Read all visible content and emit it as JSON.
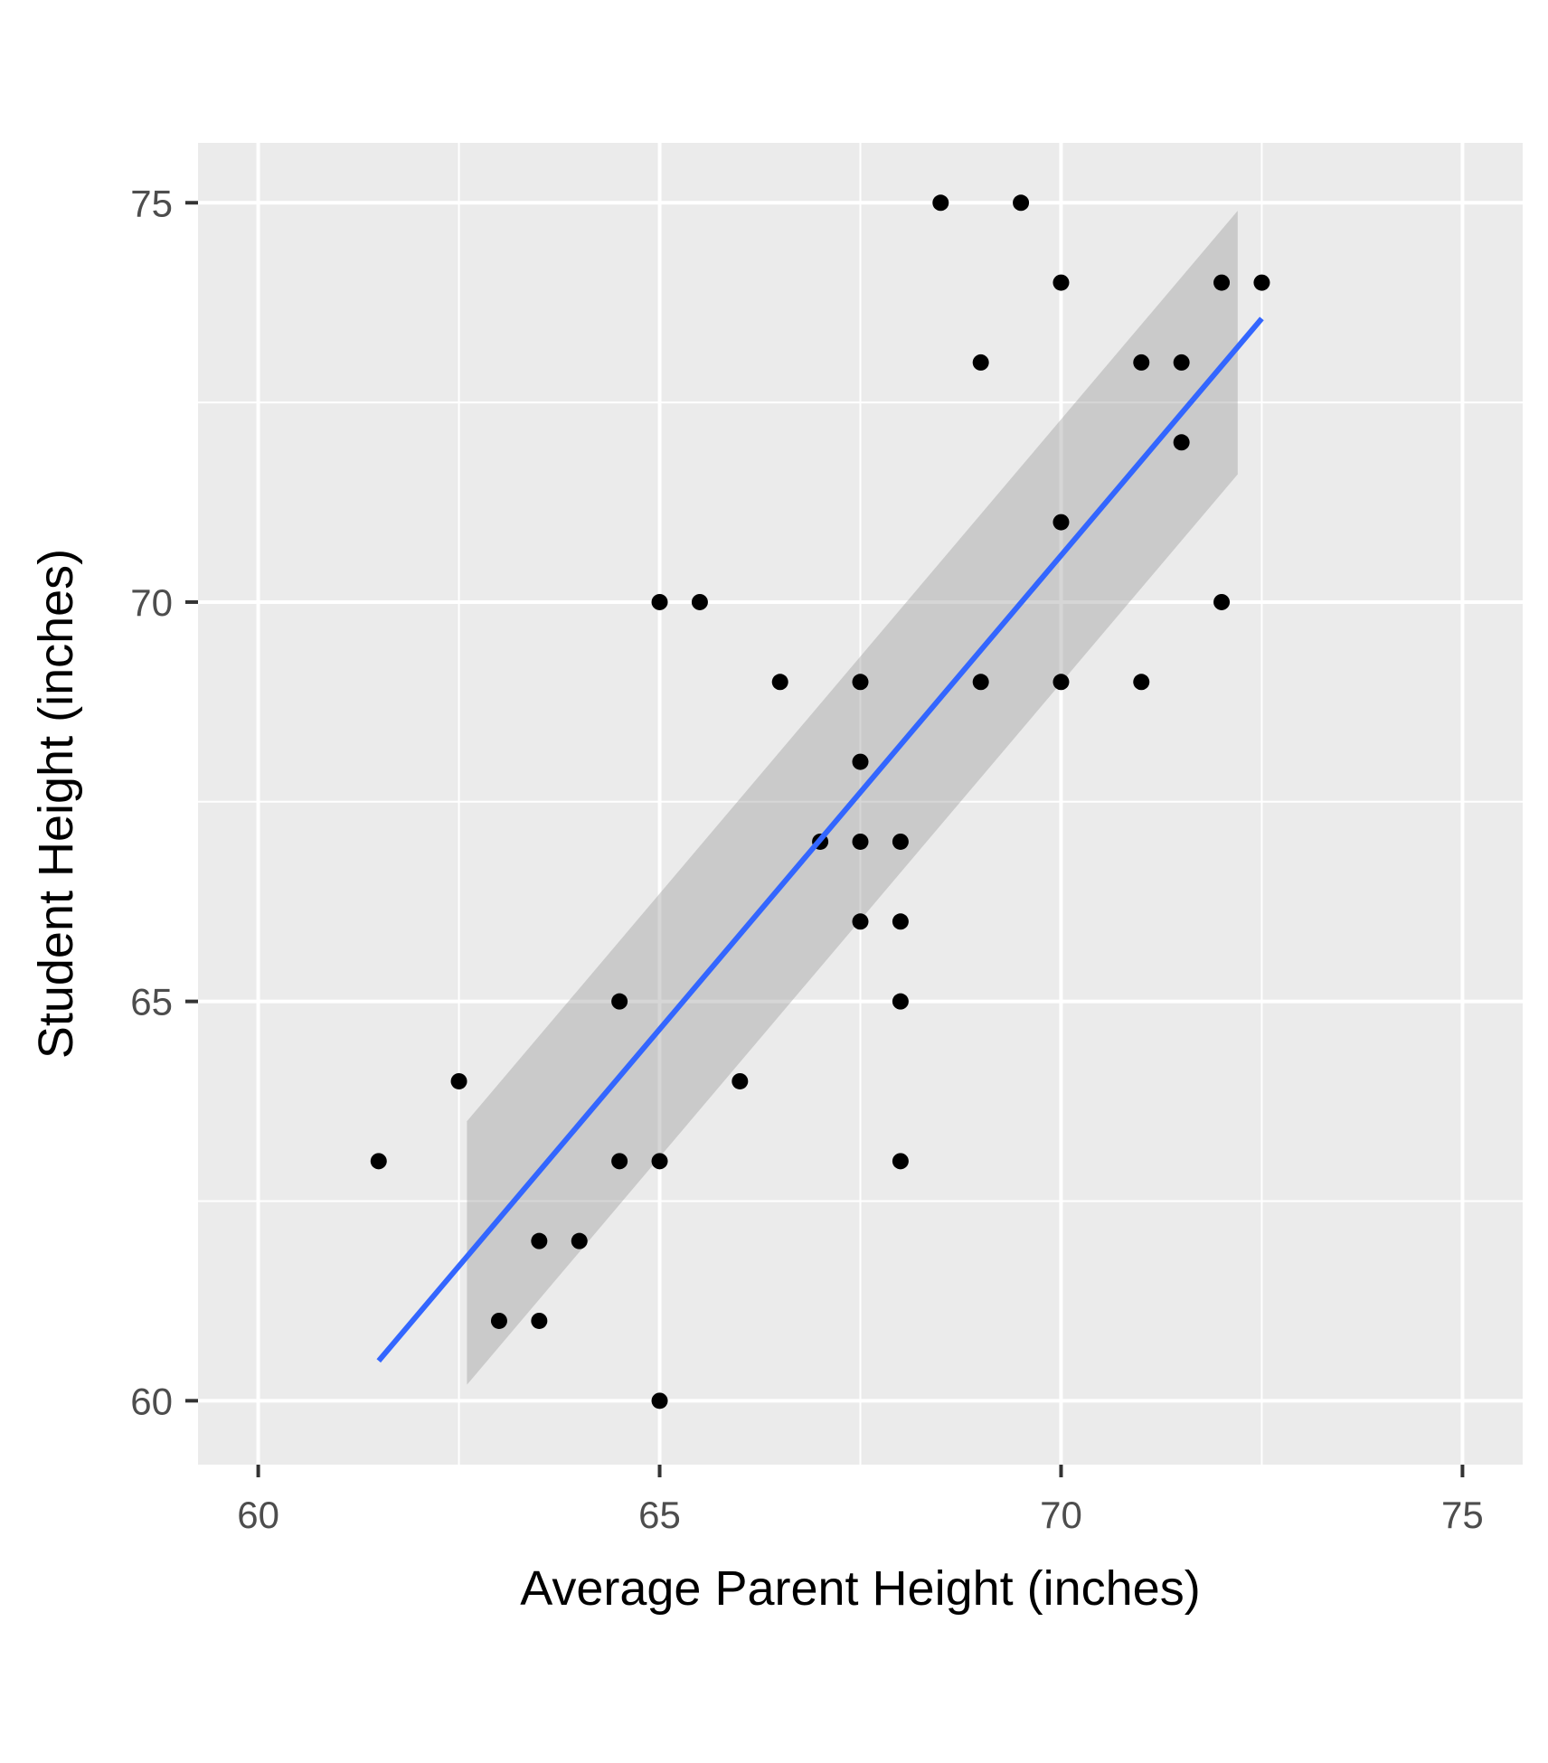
{
  "chart_data": {
    "type": "scatter",
    "title": "",
    "xlabel": "Average Parent Height (inches)",
    "ylabel": "Student Height (inches)",
    "xlim": [
      59.25,
      75.75
    ],
    "ylim": [
      59.2,
      75.75
    ],
    "x_ticks": [
      60,
      65,
      70,
      75
    ],
    "y_ticks": [
      60,
      65,
      70,
      75
    ],
    "x_tick_labels": [
      "60",
      "65",
      "70",
      "75"
    ],
    "y_tick_labels": [
      "60",
      "65",
      "70",
      "75"
    ],
    "grid": true,
    "series": [
      {
        "points": [
          {
            "x": 61.5,
            "y": 63
          },
          {
            "x": 62.5,
            "y": 64
          },
          {
            "x": 63,
            "y": 61
          },
          {
            "x": 63.5,
            "y": 62
          },
          {
            "x": 63.5,
            "y": 61
          },
          {
            "x": 64,
            "y": 62
          },
          {
            "x": 64.5,
            "y": 65
          },
          {
            "x": 64.5,
            "y": 63
          },
          {
            "x": 65,
            "y": 70
          },
          {
            "x": 65,
            "y": 63
          },
          {
            "x": 65,
            "y": 60
          },
          {
            "x": 65.5,
            "y": 70
          },
          {
            "x": 66,
            "y": 64
          },
          {
            "x": 66.5,
            "y": 69
          },
          {
            "x": 67,
            "y": 67
          },
          {
            "x": 67.5,
            "y": 69
          },
          {
            "x": 67.5,
            "y": 68
          },
          {
            "x": 67.5,
            "y": 67
          },
          {
            "x": 67.5,
            "y": 66
          },
          {
            "x": 68,
            "y": 67
          },
          {
            "x": 68,
            "y": 66
          },
          {
            "x": 68,
            "y": 65
          },
          {
            "x": 68,
            "y": 63
          },
          {
            "x": 68.5,
            "y": 75
          },
          {
            "x": 69,
            "y": 73
          },
          {
            "x": 69,
            "y": 69
          },
          {
            "x": 69.5,
            "y": 75
          },
          {
            "x": 70,
            "y": 74
          },
          {
            "x": 70,
            "y": 71
          },
          {
            "x": 70,
            "y": 69
          },
          {
            "x": 71,
            "y": 73
          },
          {
            "x": 71,
            "y": 69
          },
          {
            "x": 71.5,
            "y": 73
          },
          {
            "x": 71.5,
            "y": 72
          },
          {
            "x": 72,
            "y": 74
          },
          {
            "x": 72,
            "y": 70
          },
          {
            "x": 72.5,
            "y": 74
          }
        ]
      }
    ],
    "fit_line": {
      "x": [
        61.5,
        72.5
      ],
      "y": [
        60.5,
        73.55
      ]
    },
    "confidence_band": {
      "x": [
        62.6,
        72.2
      ],
      "upper": [
        63.5,
        74.9
      ],
      "lower": [
        60.2,
        71.6
      ]
    },
    "colors": {
      "panel": "#ebebeb",
      "grid": "#ffffff",
      "points": "#000000",
      "fit_line": "#3366ff",
      "band": "#999999"
    }
  }
}
